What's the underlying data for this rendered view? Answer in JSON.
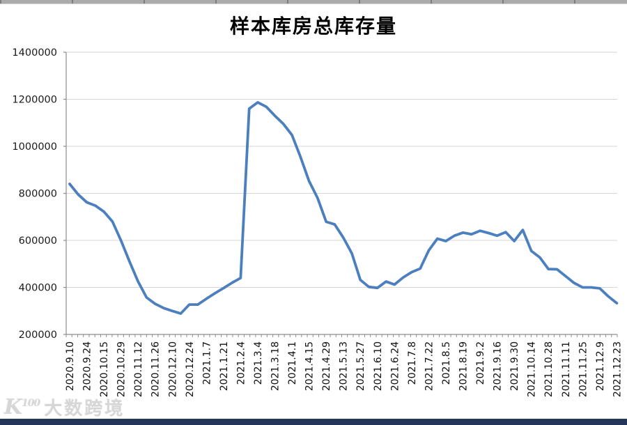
{
  "page": {
    "top_strip_color": "#ABABAB",
    "bottom_strip_color": "#24365A",
    "watermark": {
      "logo_text": "K",
      "logo_superscript": "100",
      "brand_text": "大数跨境"
    }
  },
  "chart_data": {
    "type": "line",
    "title": "样本库房总库存量",
    "xlabel": "",
    "ylabel": "",
    "ylim": [
      200000,
      1400000
    ],
    "y_tick_step": 200000,
    "y_tick_labels": [
      "200000",
      "400000",
      "600000",
      "800000",
      "1000000",
      "1200000",
      "1400000"
    ],
    "grid": true,
    "legend_position": "none",
    "line_color": "#4C7FBE",
    "grid_color": "#D6D6D6",
    "axis_color": "#8C8C8C",
    "tick_label_color": "#1A1A1A",
    "x_labels": [
      "2020.9.10",
      "2020.9.24",
      "2020.10.15",
      "2020.10.29",
      "2020.11.12",
      "2020.11.26",
      "2020.12.10",
      "2020.12.24",
      "2021.1.7",
      "2021.1.21",
      "2021.2.4",
      "2021.3.4",
      "2021.3.18",
      "2021.4.1",
      "2021.4.15",
      "2021.4.29",
      "2021.5.13",
      "2021.5.27",
      "2021.6.10",
      "2021.6.24",
      "2021.7.8",
      "2021.7.22",
      "2021.8.5",
      "2021.8.19",
      "2021.9.2",
      "2021.9.16",
      "2021.9.30",
      "2021.10.14",
      "2021.10.28",
      "2021.11.11",
      "2021.11.25",
      "2021.12.9",
      "2021.12.23"
    ],
    "label_every_n_points": 2,
    "series": [
      {
        "name": "样本库房总库存量",
        "values": [
          840000,
          795000,
          762000,
          748000,
          722000,
          680000,
          600000,
          510000,
          425000,
          357000,
          330000,
          312000,
          300000,
          289000,
          327000,
          327000,
          352000,
          375000,
          397000,
          420000,
          440000,
          1160000,
          1187000,
          1168000,
          1130000,
          1095000,
          1048000,
          955000,
          852000,
          780000,
          679000,
          668000,
          612000,
          545000,
          432000,
          402000,
          398000,
          425000,
          412000,
          442000,
          465000,
          480000,
          557000,
          607000,
          597000,
          620000,
          633000,
          626000,
          641000,
          631000,
          620000,
          635000,
          597000,
          644000,
          555000,
          527000,
          478000,
          477000,
          448000,
          419000,
          400000,
          400000,
          396000,
          362000,
          333000
        ]
      }
    ]
  }
}
